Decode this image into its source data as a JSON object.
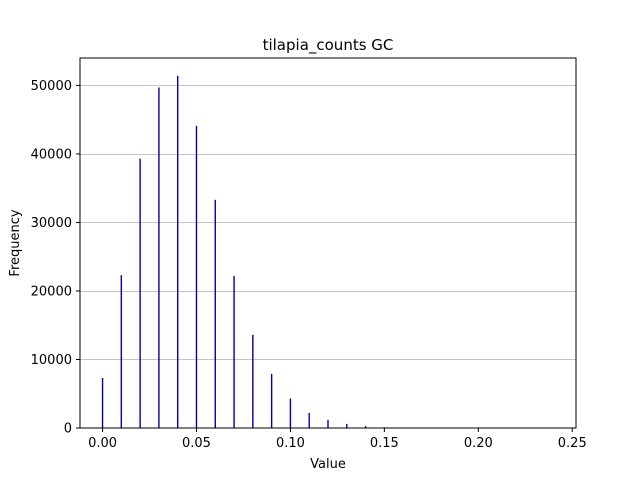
{
  "chart_data": {
    "type": "bar",
    "title": "tilapia_counts GC",
    "xlabel": "Value",
    "ylabel": "Frequency",
    "xlim": [
      -0.012,
      0.252
    ],
    "ylim": [
      0,
      54000
    ],
    "grid": "y",
    "bar_color": "#0000aa",
    "x_ticks": [
      0.0,
      0.05,
      0.1,
      0.15,
      0.2,
      0.25
    ],
    "x_tick_labels": [
      "0.00",
      "0.05",
      "0.10",
      "0.15",
      "0.20",
      "0.25"
    ],
    "y_ticks": [
      0,
      10000,
      20000,
      30000,
      40000,
      50000
    ],
    "y_tick_labels": [
      "0",
      "10000",
      "20000",
      "30000",
      "40000",
      "50000"
    ],
    "x": [
      0.0,
      0.01,
      0.02,
      0.03,
      0.04,
      0.05,
      0.06,
      0.07,
      0.08,
      0.09,
      0.1,
      0.11,
      0.12,
      0.13,
      0.14,
      0.15,
      0.16
    ],
    "values": [
      7300,
      22300,
      39300,
      49700,
      51400,
      44100,
      33300,
      22200,
      13600,
      7900,
      4300,
      2200,
      1200,
      600,
      300,
      100,
      50
    ]
  }
}
